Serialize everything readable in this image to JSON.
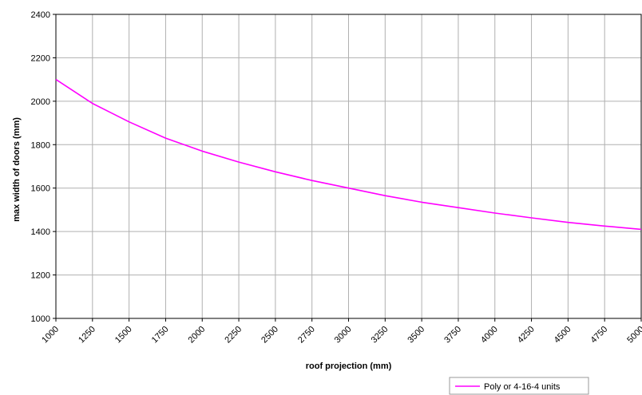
{
  "chart_data": {
    "type": "line",
    "title": "",
    "xlabel": "roof projection (mm)",
    "ylabel": "max width of doors (mm)",
    "xlim": [
      1000,
      5000
    ],
    "ylim": [
      1000,
      2400
    ],
    "x_ticks": [
      "1000",
      "1250",
      "1500",
      "1750",
      "2000",
      "2250",
      "2500",
      "2750",
      "3000",
      "3250",
      "3500",
      "3750",
      "4000",
      "4250",
      "4500",
      "4750",
      "5000"
    ],
    "y_ticks": [
      "1000",
      "1200",
      "1400",
      "1600",
      "1800",
      "2000",
      "2200",
      "2400"
    ],
    "grid": true,
    "legend_position": "bottom-right",
    "series": [
      {
        "name": "Poly or 4-16-4 units",
        "color": "#ff00ff",
        "x": [
          1000,
          1250,
          1500,
          1750,
          2000,
          2250,
          2500,
          2750,
          3000,
          3250,
          3500,
          3750,
          4000,
          4250,
          4500,
          4750,
          5000
        ],
        "y": [
          2100,
          1990,
          1905,
          1830,
          1770,
          1720,
          1675,
          1635,
          1600,
          1565,
          1535,
          1510,
          1485,
          1463,
          1442,
          1425,
          1410
        ]
      }
    ]
  }
}
